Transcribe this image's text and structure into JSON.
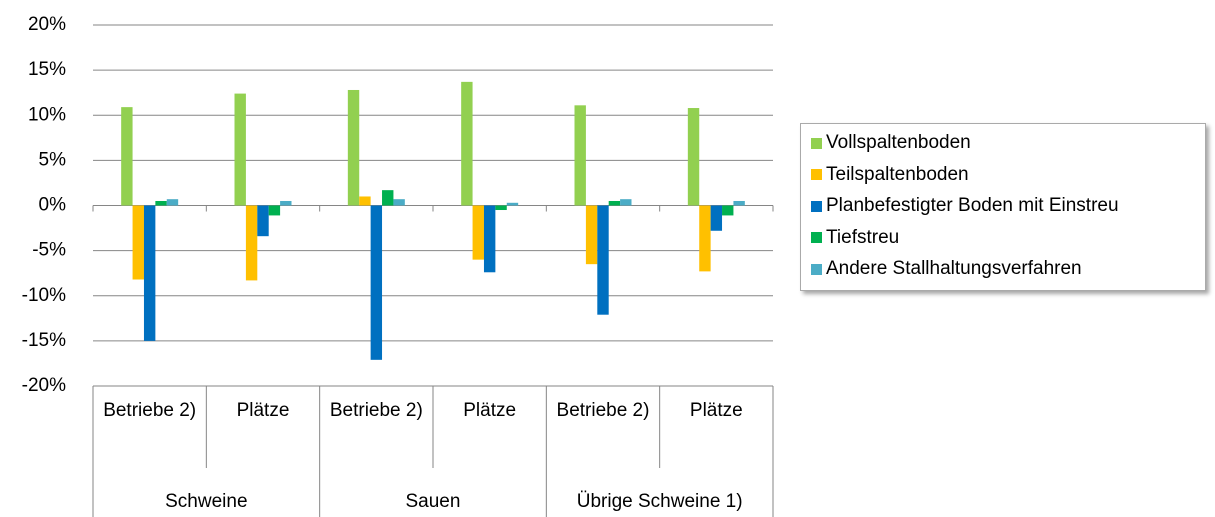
{
  "chart_data": {
    "type": "bar",
    "categories": [
      "Betriebe 2)",
      "Plätze",
      "Betriebe 2)",
      "Plätze",
      "Betriebe 2)",
      "Plätze"
    ],
    "groups": [
      "Schweine",
      "Sauen",
      "Übrige Schweine 1)"
    ],
    "series": [
      {
        "name": "Vollspaltenboden",
        "color": "#92d050",
        "values": [
          10.9,
          12.4,
          12.8,
          13.7,
          11.1,
          10.8
        ]
      },
      {
        "name": "Teilspaltenboden",
        "color": "#ffc000",
        "values": [
          -8.2,
          -8.3,
          1.0,
          -6.0,
          -6.5,
          -7.3
        ]
      },
      {
        "name": "Planbefestigter Boden mit Einstreu",
        "color": "#0070c0",
        "values": [
          -15.0,
          -3.4,
          -17.1,
          -7.4,
          -12.1,
          -2.8
        ]
      },
      {
        "name": "Tiefstreu",
        "color": "#00b050",
        "values": [
          0.5,
          -1.1,
          1.7,
          -0.5,
          0.5,
          -1.1
        ]
      },
      {
        "name": "Andere Stallhaltungsverfahren",
        "color": "#4bacc6",
        "values": [
          0.7,
          0.5,
          0.7,
          0.3,
          0.7,
          0.5
        ]
      }
    ],
    "ylim": [
      -20,
      20
    ],
    "yticks": [
      {
        "value": -20,
        "label": "-20%"
      },
      {
        "value": -15,
        "label": "-15%"
      },
      {
        "value": -10,
        "label": "-10%"
      },
      {
        "value": -5,
        "label": "-5%"
      },
      {
        "value": 0,
        "label": "0%"
      },
      {
        "value": 5,
        "label": "5%"
      },
      {
        "value": 10,
        "label": "10%"
      },
      {
        "value": 15,
        "label": "15%"
      },
      {
        "value": 20,
        "label": "20%"
      }
    ],
    "grid": true,
    "legend": "right"
  }
}
